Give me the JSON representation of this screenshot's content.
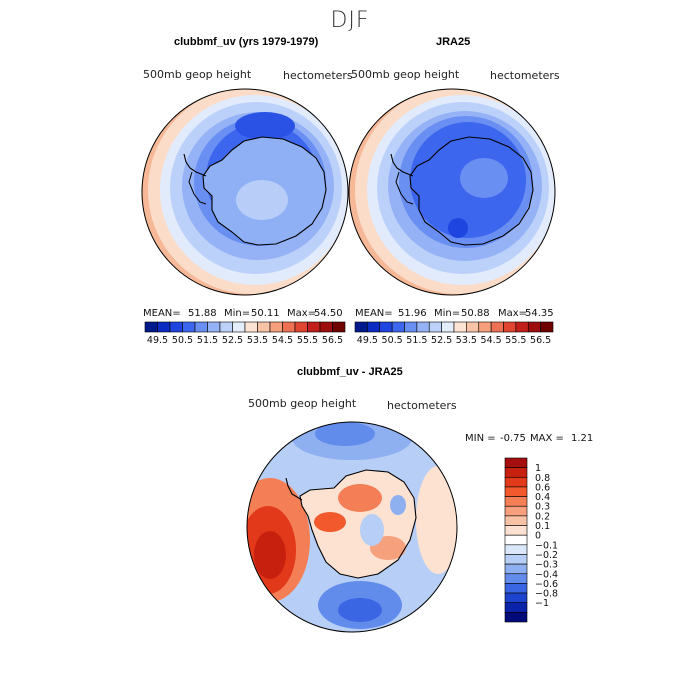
{
  "figure": {
    "title": "DJF"
  },
  "chart_data": [
    {
      "type": "heatmap",
      "projection": "south-polar-stereographic",
      "title": "clubbmf_uv (yrs 1979-1979)",
      "left_label": "500mb geop height",
      "right_label": "hectometers",
      "stats": {
        "mean_label": "MEAN=",
        "mean": "51.88",
        "min_label": "Min=",
        "min": "50.11",
        "max_label": "Max=",
        "max": "54.50"
      },
      "colorbar": {
        "levels": [
          49.5,
          50,
          50.5,
          51,
          51.5,
          52,
          52.5,
          53,
          53.5,
          54,
          54.5,
          55,
          55.5,
          56,
          56.5
        ],
        "tick_labels": [
          "49.5",
          "50.5",
          "51.5",
          "52.5",
          "53.5",
          "54.5",
          "55.5",
          "56.5"
        ],
        "colors": [
          "#001a8c",
          "#0a2bc4",
          "#1f45e0",
          "#3d66ee",
          "#6a8ff2",
          "#94b2f5",
          "#bcd1fa",
          "#e4edfc",
          "#fde3d3",
          "#f9c3a8",
          "#f59f7c",
          "#ee7153",
          "#df4531",
          "#c21f1a",
          "#9e0d0d",
          "#6e0000"
        ]
      }
    },
    {
      "type": "heatmap",
      "projection": "south-polar-stereographic",
      "title": "JRA25",
      "left_label": "500mb geop height",
      "right_label": "hectometers",
      "stats": {
        "mean_label": "MEAN=",
        "mean": "51.96",
        "min_label": "Min=",
        "min": "50.88",
        "max_label": "Max=",
        "max": "54.35"
      },
      "colorbar": {
        "levels": [
          49.5,
          50,
          50.5,
          51,
          51.5,
          52,
          52.5,
          53,
          53.5,
          54,
          54.5,
          55,
          55.5,
          56,
          56.5
        ],
        "tick_labels": [
          "49.5",
          "50.5",
          "51.5",
          "52.5",
          "53.5",
          "54.5",
          "55.5",
          "56.5"
        ],
        "colors": [
          "#001a8c",
          "#0a2bc4",
          "#1f45e0",
          "#3d66ee",
          "#6a8ff2",
          "#94b2f5",
          "#bcd1fa",
          "#e4edfc",
          "#fde3d3",
          "#f9c3a8",
          "#f59f7c",
          "#ee7153",
          "#df4531",
          "#c21f1a",
          "#9e0d0d",
          "#6e0000"
        ]
      }
    },
    {
      "type": "heatmap",
      "projection": "south-polar-stereographic",
      "title": "clubbmf_uv - JRA25",
      "left_label": "500mb geop height",
      "right_label": "hectometers",
      "stats": {
        "min_label": "MIN =",
        "min": "-0.75",
        "max_label": "MAX =",
        "max": "1.21"
      },
      "colorbar": {
        "tick_labels": [
          "1",
          "0.8",
          "0.6",
          "0.4",
          "0.3",
          "0.2",
          "0.1",
          "0",
          "−0.1",
          "−0.2",
          "−0.3",
          "−0.4",
          "−0.6",
          "−0.8",
          "−1"
        ],
        "colors": [
          "#a50f0f",
          "#c8200f",
          "#e2391a",
          "#f25a2d",
          "#f47e55",
          "#f6a07e",
          "#f9c2a6",
          "#fde2d2",
          "#ffffff",
          "#dbe8fb",
          "#b7cff6",
          "#8eb0f1",
          "#628cec",
          "#3a66e3",
          "#1d44cf",
          "#0b23a8",
          "#020b7a"
        ]
      }
    }
  ]
}
